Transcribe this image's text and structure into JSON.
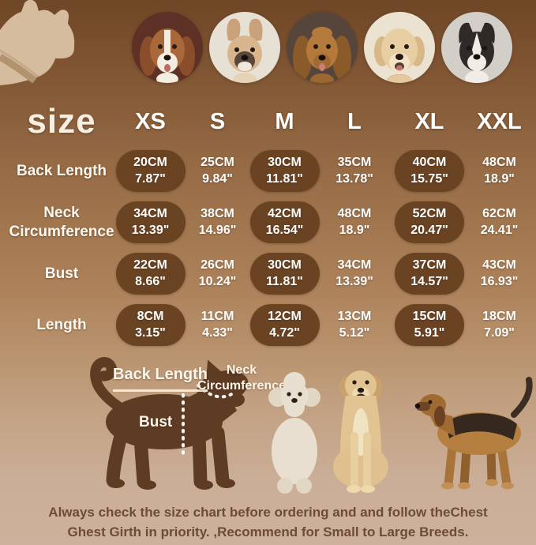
{
  "breeds_row": {
    "corner_silhouette": "french-bulldog-silhouette",
    "photos": [
      "Beagle",
      "French Bulldog",
      "Cocker Spaniel",
      "Golden Retriever",
      "Border Collie"
    ]
  },
  "size_chart": {
    "corner_label": "size",
    "columns": [
      "XS",
      "S",
      "M",
      "L",
      "XL",
      "XXL"
    ],
    "highlighted_columns": [
      0,
      2,
      4
    ],
    "rows": [
      {
        "label": "Back Length",
        "cells": [
          [
            "20CM",
            "7.87\""
          ],
          [
            "25CM",
            "9.84\""
          ],
          [
            "30CM",
            "11.81\""
          ],
          [
            "35CM",
            "13.78\""
          ],
          [
            "40CM",
            "15.75\""
          ],
          [
            "48CM",
            "18.9\""
          ]
        ]
      },
      {
        "label": "Neck Circumference",
        "cells": [
          [
            "34CM",
            "13.39\""
          ],
          [
            "38CM",
            "14.96\""
          ],
          [
            "42CM",
            "16.54\""
          ],
          [
            "48CM",
            "18.9\""
          ],
          [
            "52CM",
            "20.47\""
          ],
          [
            "62CM",
            "24.41\""
          ]
        ]
      },
      {
        "label": "Bust",
        "cells": [
          [
            "22CM",
            "8.66\""
          ],
          [
            "26CM",
            "10.24\""
          ],
          [
            "30CM",
            "11.81\""
          ],
          [
            "34CM",
            "13.39\""
          ],
          [
            "37CM",
            "14.57\""
          ],
          [
            "43CM",
            "16.93\""
          ]
        ]
      },
      {
        "label": "Length",
        "cells": [
          [
            "8CM",
            "3.15\""
          ],
          [
            "11CM",
            "4.33\""
          ],
          [
            "12CM",
            "4.72\""
          ],
          [
            "13CM",
            "5.12\""
          ],
          [
            "15CM",
            "5.91\""
          ],
          [
            "18CM",
            "7.09\""
          ]
        ]
      }
    ],
    "bold_cells": [
      [
        3,
        0
      ],
      [
        3,
        4
      ]
    ]
  },
  "diagram": {
    "back_length_label": "Back Length",
    "neck_label": "Neck Circumference",
    "bust_label": "Bust"
  },
  "footer": {
    "line1": "Always check the size chart before ordering and and follow theChest",
    "line2": "Ghest Girth in priority. ,Recommend for Small to Large Breeds."
  },
  "colors": {
    "background_top": "#6e4726",
    "background_bottom": "#cdb19c",
    "pill": "#6a4323",
    "table_text": "#ffffff",
    "silhouette": "#5e3b23",
    "footer_text": "#6e4b36"
  }
}
